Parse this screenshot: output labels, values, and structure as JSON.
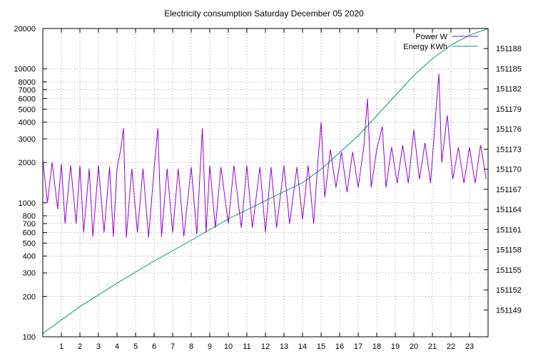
{
  "chart_data": {
    "type": "line",
    "title": "Electricity consumption Saturday December 05 2020",
    "x": {
      "range": [
        0,
        24
      ],
      "ticks": [
        1,
        2,
        3,
        4,
        5,
        6,
        7,
        8,
        9,
        10,
        11,
        12,
        13,
        14,
        15,
        16,
        17,
        18,
        19,
        20,
        21,
        22,
        23
      ]
    },
    "y_left": {
      "scale": "log",
      "range": [
        100,
        20000
      ],
      "ticks": [
        100,
        200,
        300,
        400,
        500,
        600,
        700,
        800,
        1000,
        2000,
        3000,
        4000,
        5000,
        6000,
        7000,
        8000,
        10000,
        20000
      ]
    },
    "y_right": {
      "scale": "linear",
      "range": [
        151145,
        151191
      ],
      "ticks": [
        151149,
        151152,
        151155,
        151158,
        151161,
        151164,
        151167,
        151170,
        151173,
        151176,
        151179,
        151182,
        151185,
        151188
      ]
    },
    "grid": true,
    "legend_position": "top-right",
    "series": [
      {
        "name": "Power W",
        "axis": "left",
        "color": "#9400d3",
        "points": [
          [
            0.0,
            2100
          ],
          [
            0.25,
            1000
          ],
          [
            0.5,
            2000
          ],
          [
            0.8,
            900
          ],
          [
            1.0,
            1950
          ],
          [
            1.2,
            700
          ],
          [
            1.5,
            1900
          ],
          [
            1.8,
            700
          ],
          [
            2.0,
            1900
          ],
          [
            2.2,
            600
          ],
          [
            2.5,
            1800
          ],
          [
            2.7,
            560
          ],
          [
            3.0,
            1900
          ],
          [
            3.3,
            600
          ],
          [
            3.6,
            1850
          ],
          [
            3.8,
            560
          ],
          [
            4.0,
            1800
          ],
          [
            4.2,
            2500
          ],
          [
            4.35,
            3600
          ],
          [
            4.5,
            550
          ],
          [
            4.8,
            1800
          ],
          [
            5.1,
            600
          ],
          [
            5.4,
            1800
          ],
          [
            5.7,
            550
          ],
          [
            6.0,
            1800
          ],
          [
            6.2,
            3600
          ],
          [
            6.4,
            560
          ],
          [
            6.7,
            1800
          ],
          [
            7.0,
            600
          ],
          [
            7.3,
            1800
          ],
          [
            7.6,
            560
          ],
          [
            8.0,
            1850
          ],
          [
            8.3,
            580
          ],
          [
            8.6,
            3600
          ],
          [
            8.8,
            600
          ],
          [
            9.0,
            1900
          ],
          [
            9.3,
            650
          ],
          [
            9.6,
            1850
          ],
          [
            10.0,
            700
          ],
          [
            10.3,
            1900
          ],
          [
            10.7,
            650
          ],
          [
            11.0,
            1900
          ],
          [
            11.3,
            650
          ],
          [
            11.7,
            1850
          ],
          [
            12.0,
            600
          ],
          [
            12.3,
            1850
          ],
          [
            12.6,
            650
          ],
          [
            13.0,
            1900
          ],
          [
            13.3,
            700
          ],
          [
            13.7,
            1850
          ],
          [
            14.0,
            750
          ],
          [
            14.3,
            1900
          ],
          [
            14.6,
            700
          ],
          [
            14.8,
            1800
          ],
          [
            15.0,
            4000
          ],
          [
            15.2,
            1100
          ],
          [
            15.5,
            2500
          ],
          [
            15.8,
            1300
          ],
          [
            16.1,
            2400
          ],
          [
            16.4,
            1200
          ],
          [
            16.7,
            2400
          ],
          [
            17.0,
            1300
          ],
          [
            17.3,
            2600
          ],
          [
            17.5,
            6000
          ],
          [
            17.7,
            1300
          ],
          [
            18.0,
            2500
          ],
          [
            18.3,
            3700
          ],
          [
            18.5,
            1300
          ],
          [
            18.8,
            2600
          ],
          [
            19.1,
            1400
          ],
          [
            19.4,
            2700
          ],
          [
            19.7,
            1400
          ],
          [
            20.0,
            3500
          ],
          [
            20.3,
            1500
          ],
          [
            20.6,
            2800
          ],
          [
            20.9,
            1400
          ],
          [
            21.2,
            5000
          ],
          [
            21.35,
            9200
          ],
          [
            21.5,
            2000
          ],
          [
            21.8,
            4500
          ],
          [
            22.1,
            1500
          ],
          [
            22.4,
            2600
          ],
          [
            22.7,
            1400
          ],
          [
            23.0,
            2600
          ],
          [
            23.3,
            1400
          ],
          [
            23.6,
            2700
          ],
          [
            23.9,
            1500
          ]
        ]
      },
      {
        "name": "Energy KWh",
        "axis": "right",
        "color": "#009e73",
        "points": [
          [
            0.0,
            151145.5
          ],
          [
            2.0,
            151149.5
          ],
          [
            4.0,
            151153.0
          ],
          [
            6.0,
            151156.3
          ],
          [
            8.0,
            151159.4
          ],
          [
            10.0,
            151162.6
          ],
          [
            12.0,
            151165.3
          ],
          [
            14.0,
            151168.0
          ],
          [
            15.0,
            151170.0
          ],
          [
            16.0,
            151172.5
          ],
          [
            17.0,
            151175.0
          ],
          [
            18.0,
            151178.0
          ],
          [
            19.0,
            151181.0
          ],
          [
            20.0,
            151184.0
          ],
          [
            21.0,
            151186.5
          ],
          [
            22.0,
            151188.5
          ],
          [
            23.0,
            151190.0
          ],
          [
            24.0,
            151191.0
          ]
        ]
      }
    ]
  }
}
